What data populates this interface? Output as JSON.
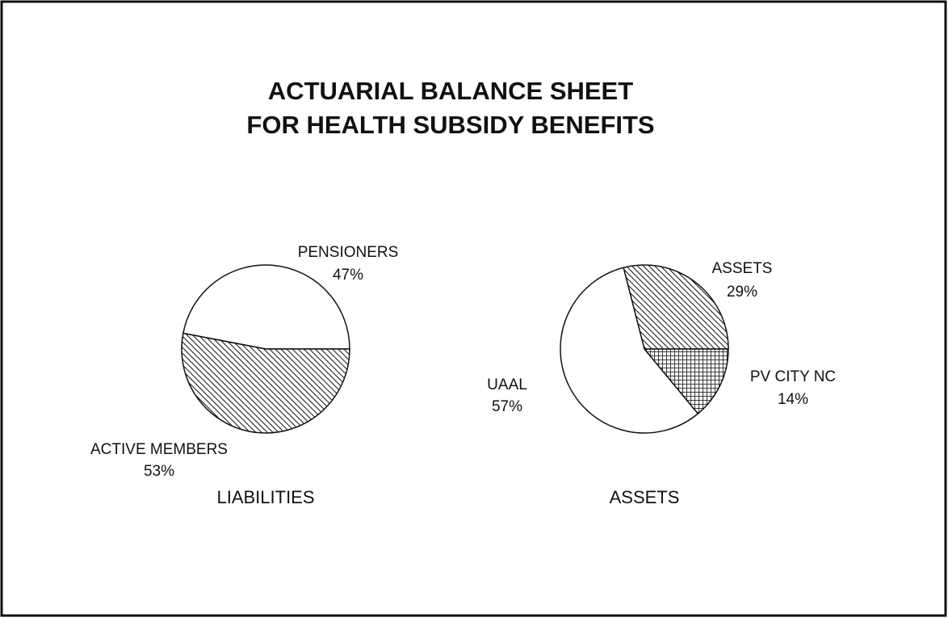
{
  "title": [
    "ACTUARIAL BALANCE SHEET",
    "FOR HEALTH SUBSIDY BENEFITS"
  ],
  "chart_data": [
    {
      "type": "pie",
      "label": "LIABILITIES",
      "categories": [
        "PENSIONERS",
        "ACTIVE MEMBERS"
      ],
      "values": [
        47,
        53
      ],
      "value_labels": [
        "47%",
        "53%"
      ],
      "patterns": [
        "none",
        "hatch"
      ]
    },
    {
      "type": "pie",
      "label": "ASSETS",
      "categories": [
        "ASSETS",
        "PV CITY NC",
        "UAAL"
      ],
      "values": [
        29,
        14,
        57
      ],
      "value_labels": [
        "29%",
        "14%",
        "57%"
      ],
      "patterns": [
        "hatch",
        "crosshatch",
        "none"
      ]
    }
  ]
}
